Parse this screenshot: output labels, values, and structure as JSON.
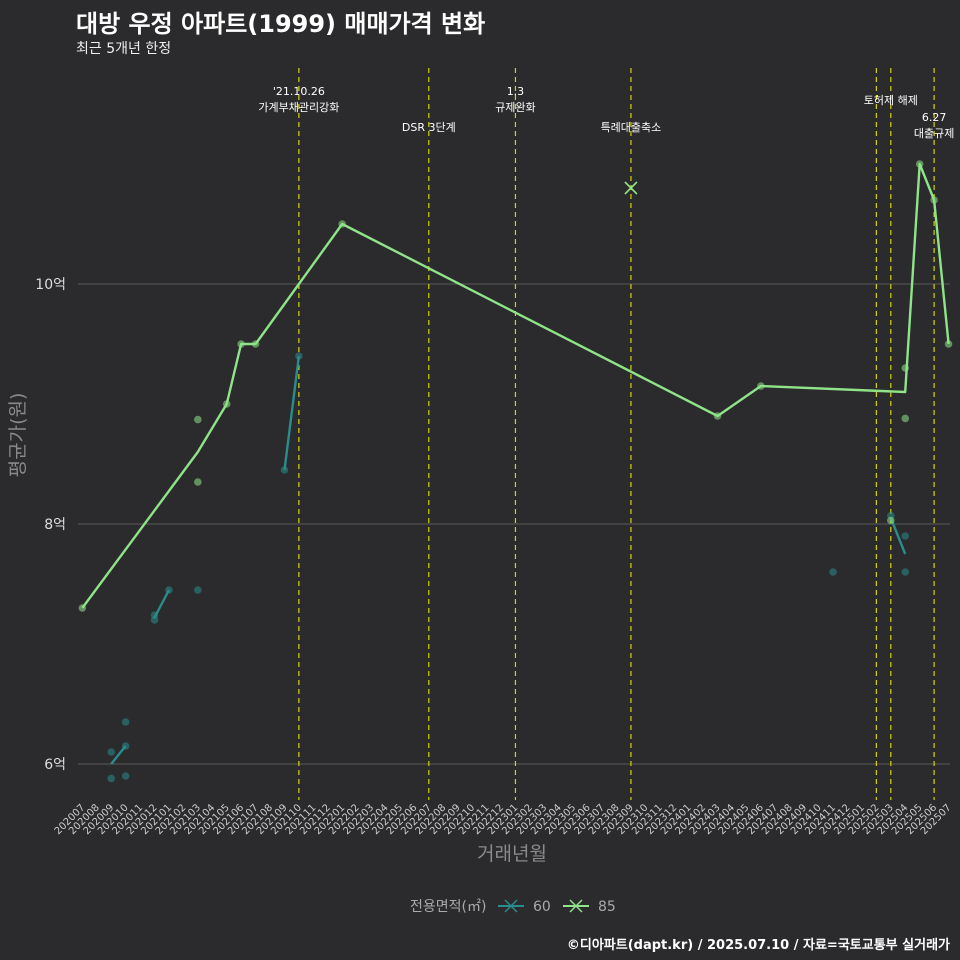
{
  "title": "대방 우정 아파트(1999) 매매가격 변화",
  "subtitle": "최근 5개년 한정",
  "caption": "©디아파트(dapt.kr) / 2025.07.10 / 자료=국토교통부 실거래가",
  "colors": {
    "background": "#2b2a2c",
    "grid": "#5a5a5a",
    "series_60": "#2a8c8c",
    "series_85": "#8fe388",
    "event_line": "#d4d40a"
  },
  "chart_data": {
    "type": "line",
    "title": "대방 우정 아파트(1999) 매매가격 변화",
    "subtitle": "최근 5개년 한정",
    "xlabel": "거래년월",
    "ylabel": "평균가(원)",
    "ylim": [
      5.7,
      11.8
    ],
    "yticks": [
      {
        "value": 6,
        "label": "6억"
      },
      {
        "value": 8,
        "label": "8억"
      },
      {
        "value": 10,
        "label": "10억"
      }
    ],
    "categories": [
      "202007",
      "202008",
      "202009",
      "202010",
      "202011",
      "202012",
      "202101",
      "202102",
      "202103",
      "202104",
      "202105",
      "202106",
      "202107",
      "202108",
      "202109",
      "202110",
      "202111",
      "202112",
      "202201",
      "202202",
      "202203",
      "202204",
      "202205",
      "202206",
      "202207",
      "202208",
      "202209",
      "202210",
      "202211",
      "202212",
      "202301",
      "202302",
      "202303",
      "202304",
      "202305",
      "202306",
      "202307",
      "202308",
      "202309",
      "202310",
      "202311",
      "202312",
      "202401",
      "202402",
      "202403",
      "202404",
      "202405",
      "202406",
      "202407",
      "202408",
      "202409",
      "202410",
      "202411",
      "202412",
      "202501",
      "202502",
      "202503",
      "202504",
      "202505",
      "202506",
      "202507"
    ],
    "legend": {
      "title": "전용면적(㎡)",
      "position": "bottom"
    },
    "series": [
      {
        "name": "60",
        "color": "#2a8c8c",
        "line": [
          {
            "x": "202009",
            "y": 6.0
          },
          {
            "x": "202010",
            "y": 6.15
          }
        ],
        "line2": [
          {
            "x": "202012",
            "y": 7.22
          },
          {
            "x": "202101",
            "y": 7.45
          }
        ],
        "line3": [
          {
            "x": "202109",
            "y": 8.45
          },
          {
            "x": "202110",
            "y": 9.4
          }
        ],
        "line4": [
          {
            "x": "202503",
            "y": 8.05
          },
          {
            "x": "202504",
            "y": 7.75
          }
        ],
        "points": [
          {
            "x": "202009",
            "y": 6.1
          },
          {
            "x": "202009",
            "y": 5.88
          },
          {
            "x": "202010",
            "y": 6.35
          },
          {
            "x": "202010",
            "y": 6.15
          },
          {
            "x": "202010",
            "y": 5.9
          },
          {
            "x": "202012",
            "y": 7.24
          },
          {
            "x": "202012",
            "y": 7.2
          },
          {
            "x": "202101",
            "y": 7.45
          },
          {
            "x": "202103",
            "y": 7.45
          },
          {
            "x": "202109",
            "y": 8.45
          },
          {
            "x": "202110",
            "y": 9.4
          },
          {
            "x": "202411",
            "y": 7.6
          },
          {
            "x": "202503",
            "y": 8.07
          },
          {
            "x": "202504",
            "y": 7.9
          },
          {
            "x": "202504",
            "y": 7.6
          }
        ]
      },
      {
        "name": "85",
        "color": "#8fe388",
        "line": [
          {
            "x": "202007",
            "y": 7.3
          },
          {
            "x": "202103",
            "y": 8.6
          },
          {
            "x": "202105",
            "y": 9.0
          },
          {
            "x": "202106",
            "y": 9.5
          },
          {
            "x": "202107",
            "y": 9.5
          },
          {
            "x": "202201",
            "y": 10.5
          },
          {
            "x": "202403",
            "y": 8.9
          },
          {
            "x": "202406",
            "y": 9.15
          },
          {
            "x": "202504",
            "y": 9.1
          },
          {
            "x": "202505",
            "y": 11.0
          },
          {
            "x": "202506",
            "y": 10.7
          },
          {
            "x": "202507",
            "y": 9.5
          }
        ],
        "points": [
          {
            "x": "202007",
            "y": 7.3
          },
          {
            "x": "202103",
            "y": 8.87
          },
          {
            "x": "202103",
            "y": 8.35
          },
          {
            "x": "202105",
            "y": 9.0
          },
          {
            "x": "202106",
            "y": 9.5
          },
          {
            "x": "202107",
            "y": 9.5
          },
          {
            "x": "202201",
            "y": 10.5
          },
          {
            "x": "202403",
            "y": 8.9
          },
          {
            "x": "202406",
            "y": 9.15
          },
          {
            "x": "202503",
            "y": 8.03
          },
          {
            "x": "202504",
            "y": 9.3
          },
          {
            "x": "202504",
            "y": 8.88
          },
          {
            "x": "202505",
            "y": 11.0
          },
          {
            "x": "202506",
            "y": 10.7
          },
          {
            "x": "202507",
            "y": 9.5
          }
        ],
        "markers": [
          {
            "x": "202309",
            "y": 10.8
          }
        ]
      }
    ],
    "events": [
      {
        "x": "202110",
        "lines": [
          "'21.10.26",
          "가계부채관리강화"
        ]
      },
      {
        "x": "202207",
        "lines": [
          "DSR 3단계"
        ]
      },
      {
        "x": "202301",
        "lines": [
          "1.3",
          "규제완화"
        ]
      },
      {
        "x": "202309",
        "lines": [
          "특례대출축소"
        ]
      },
      {
        "x": "202502",
        "lines": []
      },
      {
        "x": "202503",
        "lines": [
          "토허제 해제"
        ]
      },
      {
        "x": "202506",
        "lines": [
          "6.27",
          "대출규제"
        ]
      }
    ]
  }
}
